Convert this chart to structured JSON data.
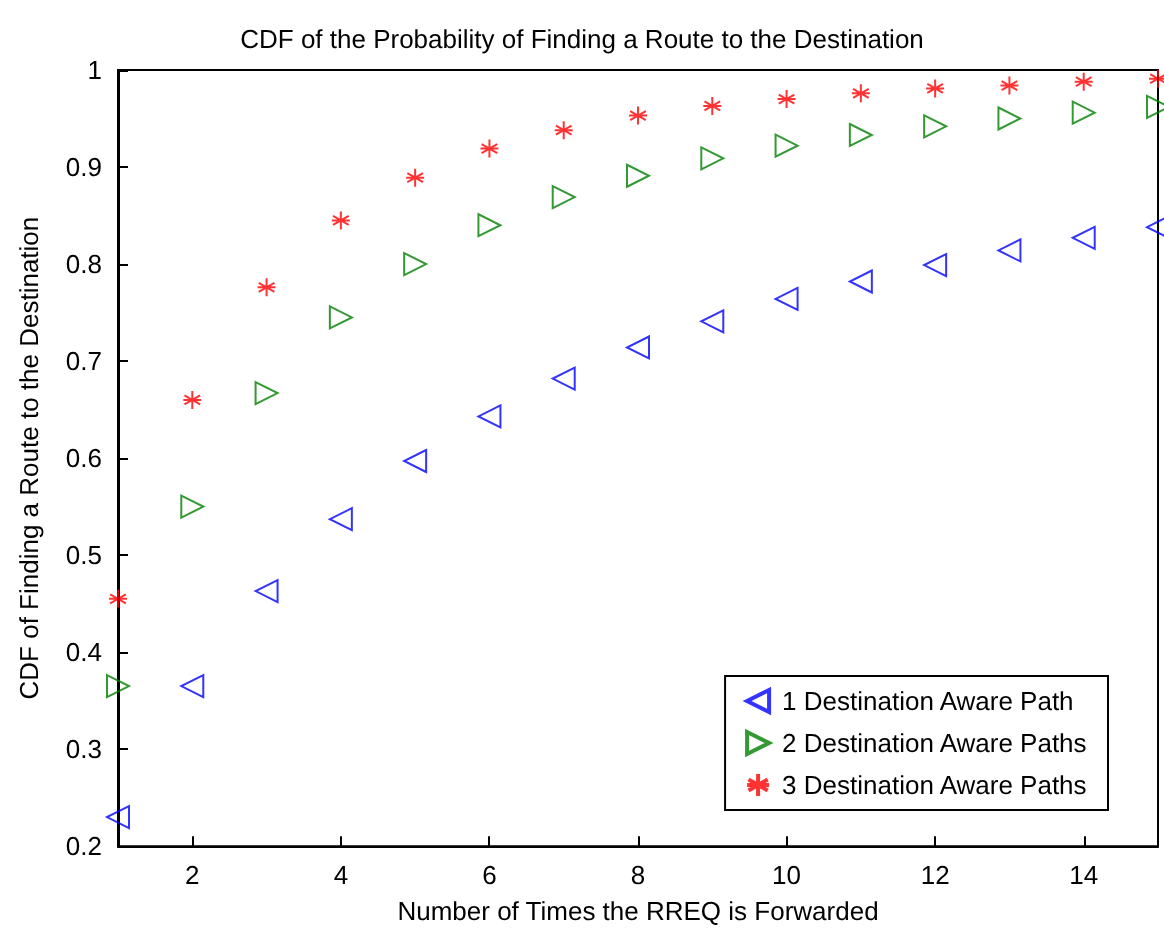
{
  "chart_data": {
    "type": "scatter",
    "title": "CDF of the Probability of Finding a Route to the Destination",
    "xlabel": "Number of Times the RREQ is Forwarded",
    "ylabel": "CDF of Finding a Route to the Destination",
    "x": [
      1,
      2,
      3,
      4,
      5,
      6,
      7,
      8,
      9,
      10,
      11,
      12,
      13,
      14,
      15
    ],
    "series": [
      {
        "name": "1 Destination Aware Path",
        "color": "#0000ff",
        "marker": "triangle",
        "values": [
          0.23,
          0.365,
          0.463,
          0.537,
          0.597,
          0.643,
          0.682,
          0.714,
          0.741,
          0.764,
          0.782,
          0.799,
          0.814,
          0.827,
          0.838
        ]
      },
      {
        "name": "2 Destination Aware Paths",
        "color": "#008000",
        "marker": "triangle",
        "values": [
          0.365,
          0.55,
          0.667,
          0.745,
          0.8,
          0.84,
          0.869,
          0.891,
          0.909,
          0.922,
          0.933,
          0.942,
          0.95,
          0.956,
          0.962
        ]
      },
      {
        "name": "3 Destination Aware Paths",
        "color": "#ff0000",
        "marker": "cross",
        "values": [
          0.455,
          0.66,
          0.776,
          0.845,
          0.889,
          0.919,
          0.938,
          0.953,
          0.963,
          0.97,
          0.976,
          0.981,
          0.984,
          0.988,
          0.991
        ]
      }
    ],
    "xlim": [
      1,
      15
    ],
    "xticks": [
      2,
      4,
      6,
      8,
      10,
      12,
      14
    ],
    "ylim": [
      0.2,
      1
    ],
    "yticks": [
      0.2,
      0.3,
      0.4,
      0.5,
      0.6,
      0.7,
      0.8,
      0.9,
      1
    ],
    "grid": false,
    "legend": "bottom right"
  }
}
